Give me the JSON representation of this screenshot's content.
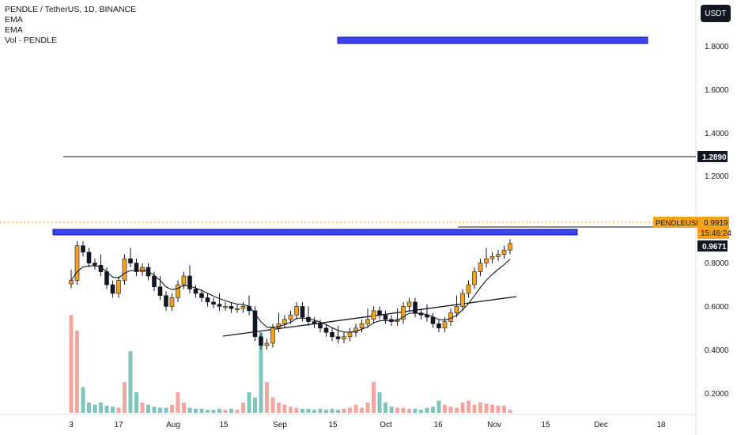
{
  "legend": {
    "symbol": "PENDLE / TetherUS, 1D, BINANCE",
    "ema1": "EMA",
    "ema2": "EMA",
    "volume": "Vol · PENDLE"
  },
  "currency_button": "USDT",
  "price_tags": {
    "ticker_label": "PENDLEUSDT",
    "last_price": "0.9919",
    "countdown": "15:46:24",
    "level_high": "1.2890",
    "level_mid": "0.9671"
  },
  "colors": {
    "up": "#f7a21b",
    "down": "#131722",
    "zone_fill": "#3b43f0",
    "zone_border": "#131b9e",
    "vol_up": "#f4a6a0",
    "vol_teal": "#7fc5bb",
    "ema": "#131722"
  },
  "chart_data": {
    "type": "candlestick",
    "title": "PENDLE / TetherUS, 1D, BINANCE",
    "y_axis": {
      "ticks": [
        "1.8000",
        "1.6000",
        "1.4000",
        "1.2000",
        "0.8000",
        "0.6000",
        "0.4000",
        "0.2000"
      ],
      "range": [
        0.1,
        1.95
      ]
    },
    "x_axis": {
      "ticks": [
        "3",
        "17",
        "Aug",
        "15",
        "Sep",
        "15",
        "Oct",
        "16",
        "Nov",
        "15",
        "Dec",
        "18"
      ]
    },
    "horizontal_levels": [
      1.289,
      0.9671
    ],
    "resistance_zone": [
      0.948,
      0.98
    ],
    "target_zone": [
      1.805,
      1.84
    ],
    "support_trendline": {
      "start": [
        "Jul 20",
        0.468
      ],
      "end": [
        "Nov 8",
        0.645
      ]
    },
    "close_series_approx": [
      0.82,
      0.98,
      0.95,
      0.9,
      0.89,
      0.86,
      0.8,
      0.76,
      0.82,
      0.92,
      0.9,
      0.86,
      0.88,
      0.84,
      0.79,
      0.75,
      0.7,
      0.74,
      0.8,
      0.84,
      0.78,
      0.76,
      0.74,
      0.72,
      0.71,
      0.7,
      0.7,
      0.69,
      0.69,
      0.7,
      0.68,
      0.56,
      0.52,
      0.53,
      0.6,
      0.62,
      0.64,
      0.66,
      0.7,
      0.65,
      0.63,
      0.62,
      0.6,
      0.58,
      0.56,
      0.55,
      0.56,
      0.58,
      0.6,
      0.62,
      0.64,
      0.68,
      0.66,
      0.64,
      0.63,
      0.64,
      0.7,
      0.72,
      0.67,
      0.66,
      0.65,
      0.62,
      0.6,
      0.63,
      0.67,
      0.7,
      0.76,
      0.8,
      0.86,
      0.9,
      0.92,
      0.93,
      0.94,
      0.96,
      0.99
    ],
    "volume_series_approx": [
      0.95,
      0.8,
      0.25,
      0.1,
      0.08,
      0.1,
      0.07,
      0.06,
      0.05,
      0.3,
      0.6,
      0.2,
      0.1,
      0.08,
      0.06,
      0.05,
      0.05,
      0.08,
      0.2,
      0.1,
      0.05,
      0.04,
      0.04,
      0.03,
      0.03,
      0.04,
      0.03,
      0.04,
      0.03,
      0.1,
      0.2,
      0.15,
      0.78,
      0.3,
      0.15,
      0.1,
      0.08,
      0.06,
      0.05,
      0.04,
      0.04,
      0.03,
      0.04,
      0.03,
      0.04,
      0.03,
      0.04,
      0.05,
      0.08,
      0.05,
      0.1,
      0.3,
      0.2,
      0.1,
      0.06,
      0.05,
      0.05,
      0.04,
      0.04,
      0.03,
      0.05,
      0.06,
      0.12,
      0.08,
      0.06,
      0.05,
      0.1,
      0.12,
      0.08,
      0.1,
      0.09,
      0.08,
      0.07,
      0.07,
      0.03
    ]
  }
}
